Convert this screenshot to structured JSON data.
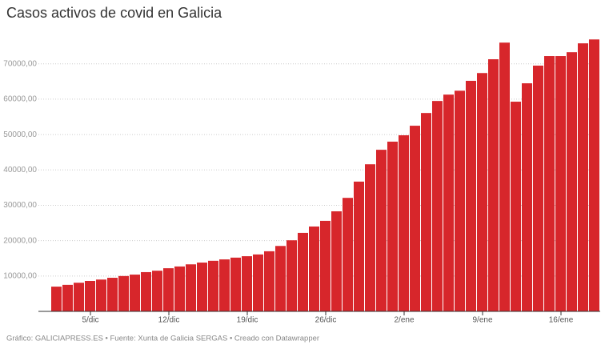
{
  "chart_data": {
    "type": "bar",
    "title": "Casos activos de covid en Galicia",
    "footer": "Gráfico: GALICIAPRESS.ES • Fuente: Xunta de Galicia SERGAS • Creado con Datawrapper",
    "categories": [
      null,
      null,
      null,
      "5/dic",
      null,
      null,
      null,
      null,
      null,
      null,
      "12/dic",
      null,
      null,
      null,
      null,
      null,
      null,
      "19/dic",
      null,
      null,
      null,
      null,
      null,
      null,
      "26/dic",
      null,
      null,
      null,
      null,
      null,
      null,
      "2/ene",
      null,
      null,
      null,
      null,
      null,
      null,
      "9/ene",
      null,
      null,
      null,
      null,
      null,
      null,
      "16/ene",
      null,
      null,
      null
    ],
    "values": [
      7000,
      7500,
      8100,
      8600,
      9000,
      9500,
      10000,
      10400,
      11100,
      11500,
      12200,
      12700,
      13300,
      13800,
      14300,
      14700,
      15200,
      15600,
      16100,
      17000,
      18500,
      20100,
      22200,
      24000,
      25600,
      28300,
      32100,
      36700,
      41600,
      45700,
      48000,
      49800,
      52500,
      56100,
      59500,
      61300,
      62400,
      65200,
      67400,
      71300,
      76000,
      59300,
      64500,
      69500,
      72200,
      72200,
      73300,
      75800,
      76900
    ],
    "color": "#d7262b",
    "ylim": [
      0,
      79000
    ],
    "yticks": [
      {
        "value": 10000,
        "label": "10000,00"
      },
      {
        "value": 20000,
        "label": "20000,00"
      },
      {
        "value": 30000,
        "label": "30000,00"
      },
      {
        "value": 40000,
        "label": "40000,00"
      },
      {
        "value": 50000,
        "label": "50000,00"
      },
      {
        "value": 60000,
        "label": "60000,00"
      },
      {
        "value": 70000,
        "label": "70000,00"
      }
    ],
    "grid": true
  }
}
